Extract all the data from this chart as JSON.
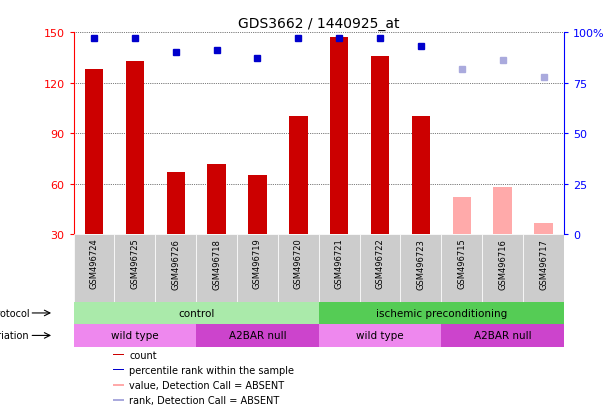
{
  "title": "GDS3662 / 1440925_at",
  "samples": [
    "GSM496724",
    "GSM496725",
    "GSM496726",
    "GSM496718",
    "GSM496719",
    "GSM496720",
    "GSM496721",
    "GSM496722",
    "GSM496723",
    "GSM496715",
    "GSM496716",
    "GSM496717"
  ],
  "bar_values": [
    128,
    133,
    67,
    72,
    65,
    100,
    147,
    136,
    100,
    null,
    null,
    null
  ],
  "bar_values_absent": [
    null,
    null,
    null,
    null,
    null,
    null,
    null,
    null,
    null,
    52,
    58,
    37
  ],
  "rank_dots": [
    97,
    97,
    90,
    91,
    87,
    97,
    97,
    97,
    93,
    null,
    null,
    null
  ],
  "rank_dots_absent": [
    null,
    null,
    null,
    null,
    null,
    null,
    null,
    null,
    null,
    82,
    86,
    78
  ],
  "ylim_left": [
    30,
    150
  ],
  "ylim_right": [
    0,
    100
  ],
  "left_ticks": [
    30,
    60,
    90,
    120,
    150
  ],
  "right_ticks": [
    0,
    25,
    50,
    75,
    100
  ],
  "right_tick_labels": [
    "0",
    "25",
    "50",
    "75",
    "100%"
  ],
  "protocol_labels": [
    "control",
    "ischemic preconditioning"
  ],
  "protocol_ranges": [
    [
      0,
      6
    ],
    [
      6,
      12
    ]
  ],
  "protocol_colors": [
    "#aaeaaa",
    "#55cc55"
  ],
  "genotype_labels": [
    "wild type",
    "A2BAR null",
    "wild type",
    "A2BAR null"
  ],
  "genotype_ranges": [
    [
      0,
      3
    ],
    [
      3,
      6
    ],
    [
      6,
      9
    ],
    [
      9,
      12
    ]
  ],
  "genotype_colors": [
    "#ee88ee",
    "#cc44cc",
    "#ee88ee",
    "#cc44cc"
  ],
  "legend_items": [
    {
      "label": "count",
      "color": "#cc0000"
    },
    {
      "label": "percentile rank within the sample",
      "color": "#0000cc"
    },
    {
      "label": "value, Detection Call = ABSENT",
      "color": "#ffaaaa"
    },
    {
      "label": "rank, Detection Call = ABSENT",
      "color": "#aaaadd"
    }
  ],
  "dot_color_present": "#0000cc",
  "dot_color_absent": "#aaaadd",
  "bar_color_present": "#cc0000",
  "bar_color_absent": "#ffaaaa",
  "bg_color": "#ffffff",
  "xticklabel_bg": "#cccccc",
  "bar_width": 0.45
}
